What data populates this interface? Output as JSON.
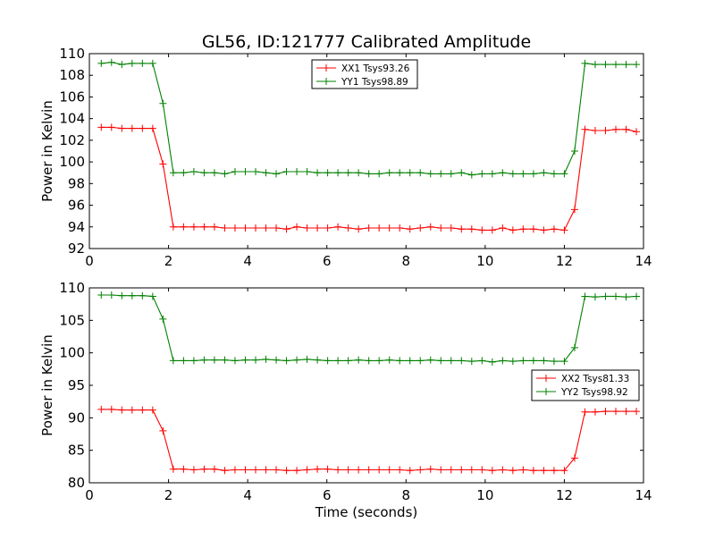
{
  "figure": {
    "title": "GL56, ID:121777 Calibrated Amplitude",
    "xlabel": "Time (seconds)"
  },
  "chart_data": [
    {
      "type": "line",
      "xlabel": "",
      "ylabel": "Power in Kelvin",
      "xlim": [
        0,
        14
      ],
      "ylim": [
        92,
        110
      ],
      "xticks": [
        "0",
        "2",
        "4",
        "6",
        "8",
        "10",
        "12",
        "14"
      ],
      "yticks": [
        "92",
        "94",
        "96",
        "98",
        "100",
        "102",
        "104",
        "106",
        "108",
        "110"
      ],
      "legend_position": "top-center",
      "grid": false,
      "x": [
        0.3,
        0.56,
        0.82,
        1.08,
        1.34,
        1.6,
        1.86,
        2.12,
        2.38,
        2.64,
        2.9,
        3.16,
        3.42,
        3.68,
        3.94,
        4.2,
        4.46,
        4.72,
        4.98,
        5.24,
        5.5,
        5.76,
        6.02,
        6.28,
        6.54,
        6.8,
        7.06,
        7.32,
        7.58,
        7.84,
        8.1,
        8.36,
        8.62,
        8.88,
        9.14,
        9.4,
        9.66,
        9.92,
        10.18,
        10.44,
        10.7,
        10.96,
        11.22,
        11.48,
        11.74,
        12.0,
        12.26,
        12.52,
        12.78,
        13.04,
        13.3,
        13.56,
        13.82
      ],
      "series": [
        {
          "name": "XX1 Tsys93.26",
          "color": "#ff0000",
          "values": [
            103.2,
            103.2,
            103.1,
            103.1,
            103.1,
            103.1,
            99.8,
            94.0,
            94.0,
            94.0,
            94.0,
            94.0,
            93.9,
            93.9,
            93.9,
            93.9,
            93.9,
            93.9,
            93.8,
            94.0,
            93.9,
            93.9,
            93.9,
            94.0,
            93.9,
            93.8,
            93.9,
            93.9,
            93.9,
            93.9,
            93.8,
            93.9,
            94.0,
            93.9,
            93.9,
            93.8,
            93.8,
            93.7,
            93.7,
            93.9,
            93.7,
            93.8,
            93.8,
            93.7,
            93.8,
            93.7,
            95.6,
            103.0,
            102.9,
            102.9,
            103.0,
            103.0,
            102.8
          ]
        },
        {
          "name": "YY1 Tsys98.89",
          "color": "#008000",
          "values": [
            109.1,
            109.2,
            109.0,
            109.1,
            109.1,
            109.1,
            105.4,
            99.0,
            99.0,
            99.1,
            99.0,
            99.0,
            98.9,
            99.1,
            99.1,
            99.1,
            99.0,
            98.9,
            99.1,
            99.1,
            99.1,
            99.0,
            99.0,
            99.0,
            99.0,
            99.0,
            98.9,
            98.9,
            99.0,
            99.0,
            99.0,
            99.0,
            98.9,
            98.9,
            98.9,
            99.0,
            98.8,
            98.9,
            98.9,
            99.0,
            98.9,
            98.9,
            98.9,
            99.0,
            98.9,
            98.9,
            101.0,
            109.1,
            109.0,
            109.0,
            109.0,
            109.0,
            109.0
          ]
        }
      ]
    },
    {
      "type": "line",
      "xlabel": "Time (seconds)",
      "ylabel": "Power in Kelvin",
      "xlim": [
        0,
        14
      ],
      "ylim": [
        80,
        110
      ],
      "xticks": [
        "0",
        "2",
        "4",
        "6",
        "8",
        "10",
        "12",
        "14"
      ],
      "yticks": [
        "80",
        "85",
        "90",
        "95",
        "100",
        "105",
        "110"
      ],
      "legend_position": "right",
      "grid": false,
      "x": [
        0.3,
        0.56,
        0.82,
        1.08,
        1.34,
        1.6,
        1.86,
        2.12,
        2.38,
        2.64,
        2.9,
        3.16,
        3.42,
        3.68,
        3.94,
        4.2,
        4.46,
        4.72,
        4.98,
        5.24,
        5.5,
        5.76,
        6.02,
        6.28,
        6.54,
        6.8,
        7.06,
        7.32,
        7.58,
        7.84,
        8.1,
        8.36,
        8.62,
        8.88,
        9.14,
        9.4,
        9.66,
        9.92,
        10.18,
        10.44,
        10.7,
        10.96,
        11.22,
        11.48,
        11.74,
        12.0,
        12.26,
        12.52,
        12.78,
        13.04,
        13.3,
        13.56,
        13.82
      ],
      "series": [
        {
          "name": "XX2 Tsys81.33",
          "color": "#ff0000",
          "values": [
            91.3,
            91.3,
            91.2,
            91.2,
            91.2,
            91.2,
            88.0,
            82.1,
            82.1,
            82.0,
            82.1,
            82.1,
            81.9,
            82.0,
            82.0,
            82.0,
            82.0,
            82.0,
            81.9,
            81.9,
            82.0,
            82.1,
            82.1,
            82.0,
            82.0,
            82.0,
            82.0,
            82.0,
            82.0,
            82.0,
            81.9,
            82.0,
            82.1,
            82.0,
            82.0,
            82.0,
            82.0,
            82.0,
            81.9,
            82.0,
            81.9,
            82.0,
            81.9,
            81.9,
            81.9,
            81.9,
            83.8,
            90.9,
            90.9,
            91.0,
            91.0,
            91.0,
            91.0
          ]
        },
        {
          "name": "YY2 Tsys98.92",
          "color": "#008000",
          "values": [
            108.9,
            108.9,
            108.8,
            108.8,
            108.8,
            108.7,
            105.2,
            98.8,
            98.8,
            98.8,
            98.9,
            98.9,
            98.9,
            98.8,
            98.9,
            98.9,
            99.0,
            98.9,
            98.8,
            98.9,
            99.0,
            98.9,
            98.8,
            98.8,
            98.8,
            98.9,
            98.8,
            98.8,
            98.9,
            98.8,
            98.8,
            98.8,
            98.9,
            98.8,
            98.8,
            98.8,
            98.7,
            98.8,
            98.6,
            98.8,
            98.7,
            98.8,
            98.8,
            98.8,
            98.7,
            98.7,
            100.8,
            108.7,
            108.6,
            108.7,
            108.7,
            108.6,
            108.7
          ]
        }
      ]
    }
  ]
}
